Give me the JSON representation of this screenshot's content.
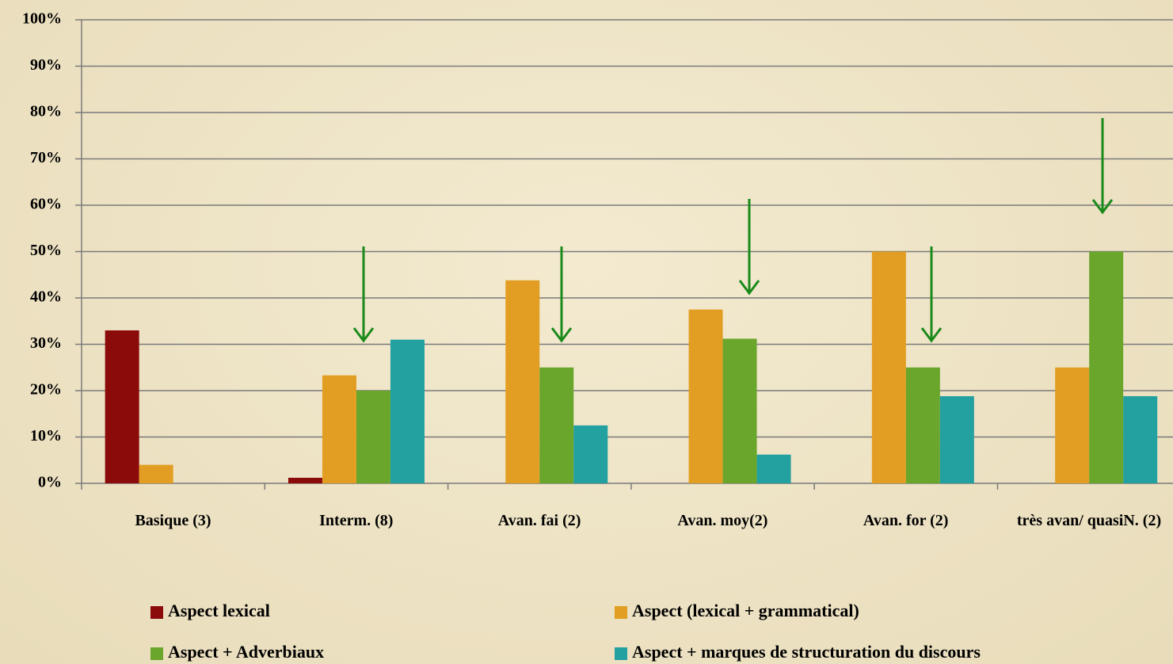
{
  "chart_data": {
    "type": "bar",
    "categories": [
      "Basique (3)",
      "Interm. (8)",
      "Avan. fai (2)",
      "Avan. moy(2)",
      "Avan. for (2)",
      "très avan/ quasiN. (2)"
    ],
    "series": [
      {
        "name": "Aspect lexical",
        "color": "#8b0a0a",
        "values": [
          33,
          1.2,
          0,
          0,
          0,
          0
        ]
      },
      {
        "name": "Aspect (lexical + grammatical)",
        "color": "#e29e22",
        "values": [
          4,
          23.3,
          43.8,
          37.5,
          50,
          25
        ]
      },
      {
        "name": "Aspect + Adverbiaux",
        "color": "#6aa62c",
        "values": [
          0,
          20,
          25,
          31.2,
          25,
          50
        ]
      },
      {
        "name": "Aspect + marques de structuration du discours",
        "color": "#23a0a0",
        "values": [
          0,
          31,
          12.5,
          6.2,
          18.8,
          18.8
        ]
      }
    ],
    "ylim": [
      0,
      100
    ],
    "yticks": [
      {
        "value": 0,
        "label": "0%"
      },
      {
        "value": 10,
        "label": "10%"
      },
      {
        "value": 20,
        "label": "20%"
      },
      {
        "value": 30,
        "label": "30%"
      },
      {
        "value": 40,
        "label": "40%"
      },
      {
        "value": 50,
        "label": "50%"
      },
      {
        "value": 60,
        "label": "60%"
      },
      {
        "value": 70,
        "label": "70%"
      },
      {
        "value": 80,
        "label": "80%"
      },
      {
        "value": 90,
        "label": "90%"
      },
      {
        "value": 100,
        "label": "100%"
      }
    ],
    "grid": true
  }
}
